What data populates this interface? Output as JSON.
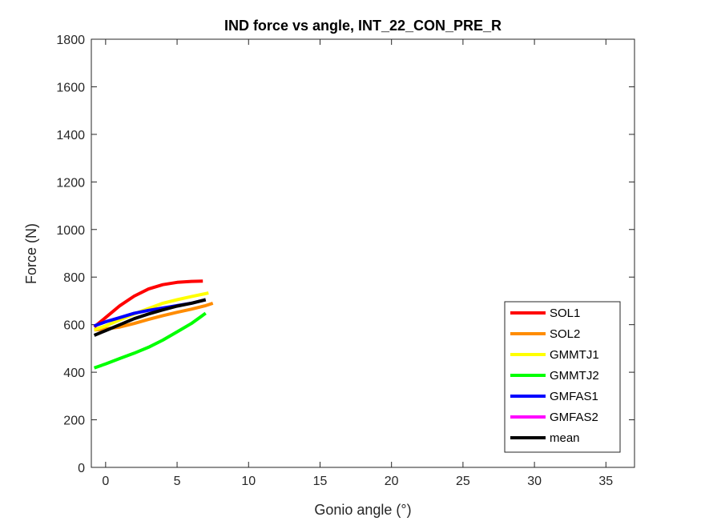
{
  "chart_data": {
    "type": "line",
    "title": "IND force vs angle, INT_22_CON_PRE_R",
    "xlabel": "Gonio angle (°)",
    "ylabel": "Force (N)",
    "xlim": [
      -1,
      37
    ],
    "ylim": [
      0,
      1800
    ],
    "xticks": [
      0,
      5,
      10,
      15,
      20,
      25,
      30,
      35
    ],
    "yticks": [
      0,
      200,
      400,
      600,
      800,
      1000,
      1200,
      1400,
      1600,
      1800
    ],
    "grid": false,
    "legend_position": "bottom-right",
    "series": [
      {
        "name": "SOL1",
        "color": "#ff0000",
        "x": [
          -0.8,
          0,
          1,
          2,
          3,
          4,
          5,
          6,
          6.8
        ],
        "y": [
          590,
          630,
          680,
          720,
          750,
          768,
          778,
          782,
          783
        ]
      },
      {
        "name": "SOL2",
        "color": "#ff8c00",
        "x": [
          -0.8,
          0,
          1,
          2,
          3,
          4,
          5,
          6,
          7,
          7.5
        ],
        "y": [
          578,
          582,
          590,
          605,
          622,
          638,
          652,
          665,
          680,
          690
        ]
      },
      {
        "name": "GMMTJ1",
        "color": "#ffff00",
        "x": [
          -0.8,
          0,
          1,
          2,
          3,
          4,
          5,
          6,
          7.2
        ],
        "y": [
          578,
          595,
          620,
          645,
          668,
          690,
          705,
          718,
          733
        ]
      },
      {
        "name": "GMMTJ2",
        "color": "#00ff00",
        "x": [
          -0.8,
          0,
          1,
          2,
          3,
          4,
          5,
          6,
          7
        ],
        "y": [
          418,
          435,
          458,
          480,
          505,
          535,
          570,
          605,
          648
        ]
      },
      {
        "name": "GMFAS1",
        "color": "#0000ff",
        "x": [
          -0.8,
          0,
          1,
          2,
          3,
          4,
          5,
          6,
          7
        ],
        "y": [
          595,
          612,
          630,
          648,
          660,
          670,
          680,
          690,
          705
        ]
      },
      {
        "name": "GMFAS2",
        "color": "#ff00ff",
        "x": [],
        "y": []
      },
      {
        "name": "mean",
        "color": "#000000",
        "x": [
          -0.8,
          0,
          1,
          2,
          3,
          4,
          5,
          6,
          7
        ],
        "y": [
          555,
          575,
          600,
          625,
          645,
          662,
          678,
          690,
          705
        ]
      }
    ]
  }
}
